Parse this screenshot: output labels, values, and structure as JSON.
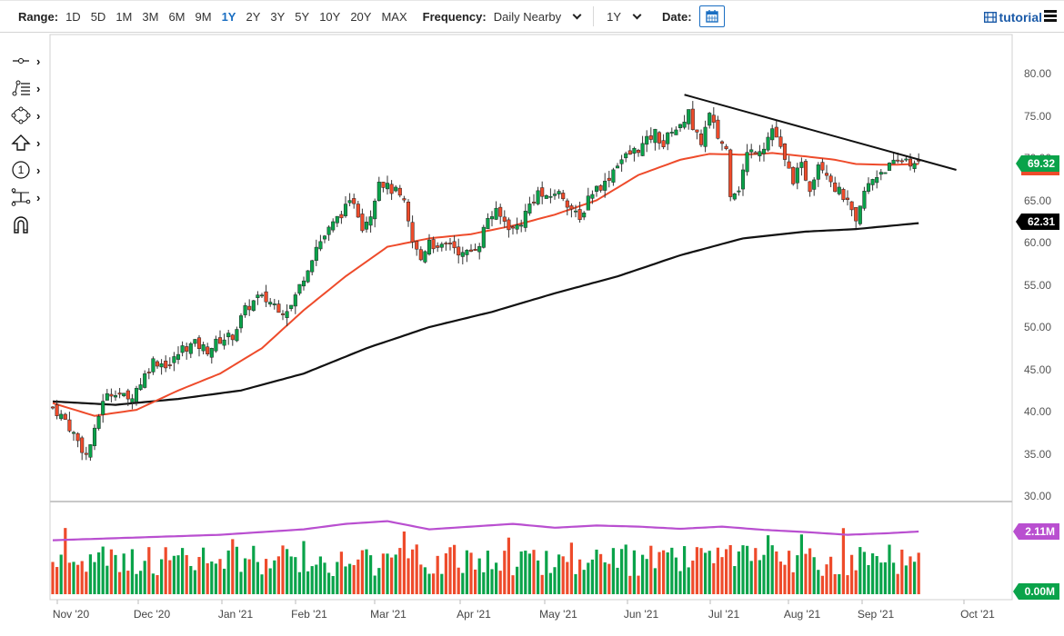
{
  "toolbar": {
    "range_label": "Range:",
    "ranges": [
      "1D",
      "5D",
      "1M",
      "3M",
      "6M",
      "9M",
      "1Y",
      "2Y",
      "3Y",
      "5Y",
      "10Y",
      "20Y",
      "MAX"
    ],
    "active_range": "1Y",
    "frequency_label": "Frequency:",
    "frequency_value": "Daily Nearby",
    "period_value": "1Y",
    "date_label": "Date:",
    "tutorial_label": "tutorial"
  },
  "sidebar_tools": [
    {
      "name": "line-tool-icon"
    },
    {
      "name": "fibonacci-tool-icon"
    },
    {
      "name": "shape-tool-icon"
    },
    {
      "name": "arrow-tool-icon"
    },
    {
      "name": "annotation-number-icon"
    },
    {
      "name": "measure-tool-icon"
    },
    {
      "name": "magnet-icon"
    }
  ],
  "colors": {
    "up": "#0aa34a",
    "down": "#ee4b2b",
    "ma_short": "#ee4b2b",
    "ma_long": "#111111",
    "volume_avg": "#b94fd0",
    "accent": "#1a6ec2"
  },
  "chart_data": {
    "type": "candlestick",
    "title": "",
    "price_axis": {
      "ticks": [
        "80.00",
        "75.00",
        "70.00",
        "65.00",
        "60.00",
        "55.00",
        "50.00",
        "45.00",
        "40.00",
        "35.00",
        "30.00"
      ],
      "range": [
        30,
        80
      ]
    },
    "x_axis": {
      "ticks": [
        "Nov '20",
        "Dec '20",
        "Jan '21",
        "Feb '21",
        "Mar '21",
        "Apr '21",
        "May '21",
        "Jun '21",
        "Jul '21",
        "Aug '21",
        "Sep '21",
        "Oct '21"
      ]
    },
    "last_price": "69.32",
    "ma_long_value": "62.31",
    "volume_avg_value": "2.11M",
    "volume_axis_min": "0.00M",
    "price_keypoints": [
      [
        0,
        40.5
      ],
      [
        3,
        39.0
      ],
      [
        6,
        36.5
      ],
      [
        8,
        34.8
      ],
      [
        10,
        37.5
      ],
      [
        12,
        41.5
      ],
      [
        15,
        42.5
      ],
      [
        18,
        41.3
      ],
      [
        21,
        43.5
      ],
      [
        24,
        46.0
      ],
      [
        28,
        45.5
      ],
      [
        31,
        47.5
      ],
      [
        34,
        48.0
      ],
      [
        37,
        47.3
      ],
      [
        40,
        48.5
      ],
      [
        43,
        49.0
      ],
      [
        46,
        52.0
      ],
      [
        49,
        53.5
      ],
      [
        52,
        53.0
      ],
      [
        55,
        52.0
      ],
      [
        57,
        52.5
      ],
      [
        60,
        56.0
      ],
      [
        63,
        59.5
      ],
      [
        66,
        61.5
      ],
      [
        69,
        63.5
      ],
      [
        72,
        65.0
      ],
      [
        74,
        62.0
      ],
      [
        76,
        63.5
      ],
      [
        78,
        67.5
      ],
      [
        80,
        66.5
      ],
      [
        82,
        66.0
      ],
      [
        84,
        64.5
      ],
      [
        86,
        60.0
      ],
      [
        88,
        58.0
      ],
      [
        90,
        60.5
      ],
      [
        92,
        59.0
      ],
      [
        95,
        60.0
      ],
      [
        98,
        58.5
      ],
      [
        100,
        59.0
      ],
      [
        102,
        60.0
      ],
      [
        104,
        63.0
      ],
      [
        106,
        63.5
      ],
      [
        108,
        62.5
      ],
      [
        110,
        61.5
      ],
      [
        112,
        62.5
      ],
      [
        114,
        64.5
      ],
      [
        116,
        66.0
      ],
      [
        118,
        65.0
      ],
      [
        120,
        66.0
      ],
      [
        122,
        65.5
      ],
      [
        124,
        64.0
      ],
      [
        126,
        62.5
      ],
      [
        128,
        65.5
      ],
      [
        130,
        66.5
      ],
      [
        132,
        67.0
      ],
      [
        135,
        69.5
      ],
      [
        138,
        70.5
      ],
      [
        141,
        71.5
      ],
      [
        144,
        73.0
      ],
      [
        146,
        71.5
      ],
      [
        148,
        73.5
      ],
      [
        150,
        73.5
      ],
      [
        152,
        76.0
      ],
      [
        153,
        73.0
      ],
      [
        155,
        72.0
      ],
      [
        157,
        75.0
      ],
      [
        159,
        72.5
      ],
      [
        161,
        71.0
      ],
      [
        162,
        66.0
      ],
      [
        164,
        66.5
      ],
      [
        166,
        70.5
      ],
      [
        168,
        71.0
      ],
      [
        170,
        71.5
      ],
      [
        172,
        73.5
      ],
      [
        173,
        72.5
      ],
      [
        175,
        69.5
      ],
      [
        177,
        67.5
      ],
      [
        179,
        69.0
      ],
      [
        181,
        66.5
      ],
      [
        183,
        69.5
      ],
      [
        185,
        68.5
      ],
      [
        187,
        66.5
      ],
      [
        189,
        65.5
      ],
      [
        191,
        63.5
      ],
      [
        192,
        62.0
      ],
      [
        194,
        66.0
      ],
      [
        196,
        67.5
      ],
      [
        198,
        68.5
      ],
      [
        200,
        69.0
      ],
      [
        202,
        69.5
      ],
      [
        204,
        70.0
      ],
      [
        206,
        69.0
      ],
      [
        207,
        69.3
      ]
    ],
    "ma_short_points": [
      [
        0,
        41
      ],
      [
        10,
        39.5
      ],
      [
        20,
        40.2
      ],
      [
        30,
        42.5
      ],
      [
        40,
        44.5
      ],
      [
        50,
        47.5
      ],
      [
        60,
        52.0
      ],
      [
        70,
        56.0
      ],
      [
        80,
        59.5
      ],
      [
        90,
        60.5
      ],
      [
        100,
        61.0
      ],
      [
        110,
        62.0
      ],
      [
        120,
        63.3
      ],
      [
        130,
        65.0
      ],
      [
        140,
        68.0
      ],
      [
        150,
        69.8
      ],
      [
        157,
        70.5
      ],
      [
        165,
        70.4
      ],
      [
        172,
        70.6
      ],
      [
        180,
        70.2
      ],
      [
        187,
        69.8
      ],
      [
        192,
        69.3
      ],
      [
        200,
        69.2
      ],
      [
        207,
        69.3
      ]
    ],
    "ma_long_points": [
      [
        0,
        41.2
      ],
      [
        15,
        40.8
      ],
      [
        30,
        41.5
      ],
      [
        45,
        42.5
      ],
      [
        60,
        44.5
      ],
      [
        75,
        47.5
      ],
      [
        90,
        50.0
      ],
      [
        105,
        51.8
      ],
      [
        120,
        54.0
      ],
      [
        135,
        56.0
      ],
      [
        150,
        58.5
      ],
      [
        165,
        60.5
      ],
      [
        180,
        61.3
      ],
      [
        192,
        61.6
      ],
      [
        207,
        62.3
      ]
    ],
    "trendlines": [
      {
        "from": [
          151,
          77.5
        ],
        "to": [
          216,
          68.6
        ],
        "color": "#111111"
      }
    ],
    "volume_avg_points": [
      [
        0,
        1.95
      ],
      [
        20,
        2.0
      ],
      [
        40,
        2.05
      ],
      [
        60,
        2.15
      ],
      [
        70,
        2.25
      ],
      [
        80,
        2.3
      ],
      [
        90,
        2.15
      ],
      [
        100,
        2.2
      ],
      [
        110,
        2.25
      ],
      [
        120,
        2.18
      ],
      [
        130,
        2.22
      ],
      [
        140,
        2.2
      ],
      [
        150,
        2.16
      ],
      [
        160,
        2.2
      ],
      [
        170,
        2.14
      ],
      [
        180,
        2.1
      ],
      [
        190,
        2.05
      ],
      [
        200,
        2.08
      ],
      [
        207,
        2.11
      ]
    ]
  }
}
